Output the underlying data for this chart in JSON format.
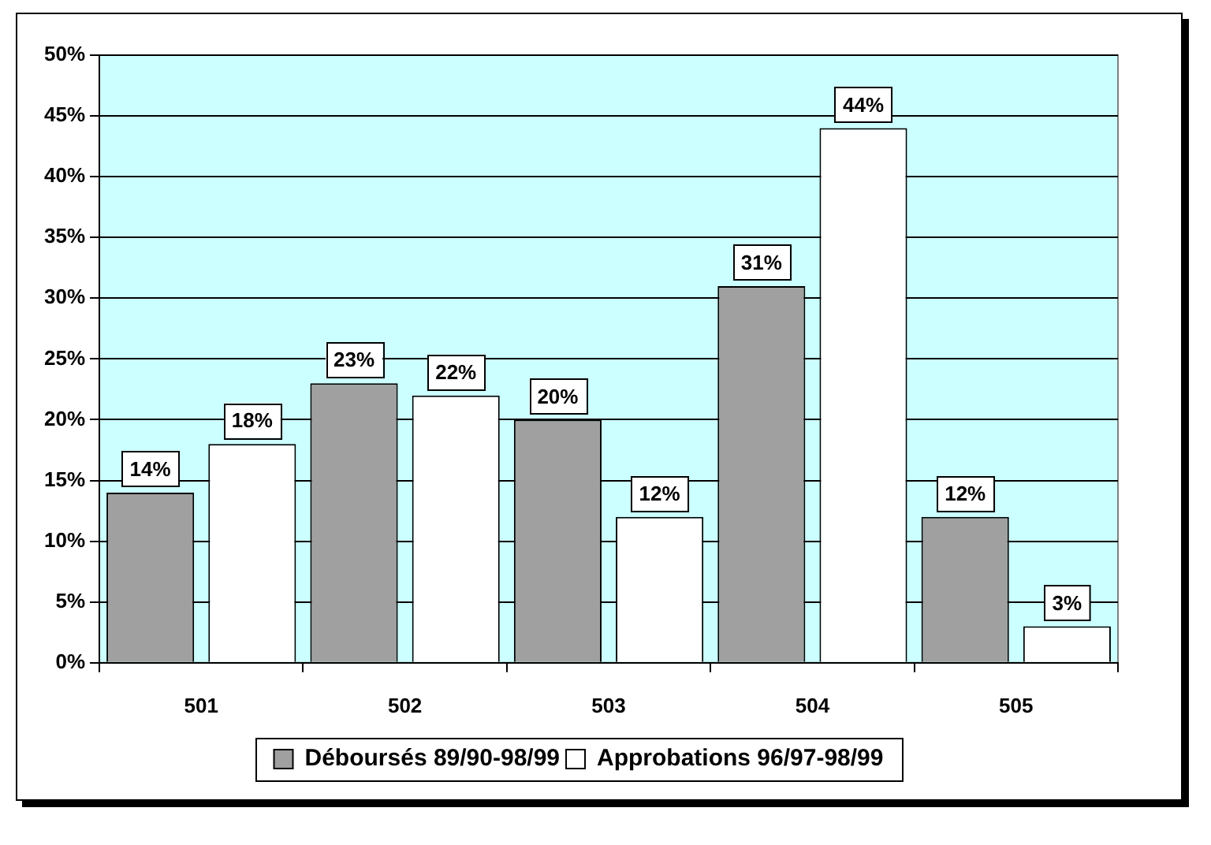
{
  "chart_data": {
    "type": "bar",
    "categories": [
      "501",
      "502",
      "503",
      "504",
      "505"
    ],
    "series": [
      {
        "name": "Déboursés 89/90-98/99",
        "color": "#a0a0a0",
        "values": [
          14,
          23,
          20,
          31,
          12
        ],
        "value_labels": [
          "14%",
          "23%",
          "20%",
          "31%",
          "12%"
        ]
      },
      {
        "name": "Approbations 96/97-98/99",
        "color": "#ffffff",
        "values": [
          18,
          22,
          12,
          44,
          3
        ],
        "value_labels": [
          "18%",
          "22%",
          "12%",
          "44%",
          "3%"
        ]
      }
    ],
    "ylim": [
      0,
      50
    ],
    "yticks": [
      {
        "value": 0,
        "label": "0%"
      },
      {
        "value": 5,
        "label": "5%"
      },
      {
        "value": 10,
        "label": "10%"
      },
      {
        "value": 15,
        "label": "15%"
      },
      {
        "value": 20,
        "label": "20%"
      },
      {
        "value": 25,
        "label": "25%"
      },
      {
        "value": 30,
        "label": "30%"
      },
      {
        "value": 35,
        "label": "35%"
      },
      {
        "value": 40,
        "label": "40%"
      },
      {
        "value": 45,
        "label": "45%"
      },
      {
        "value": 50,
        "label": "50%"
      }
    ],
    "grid": "y",
    "legend": "bottom"
  }
}
